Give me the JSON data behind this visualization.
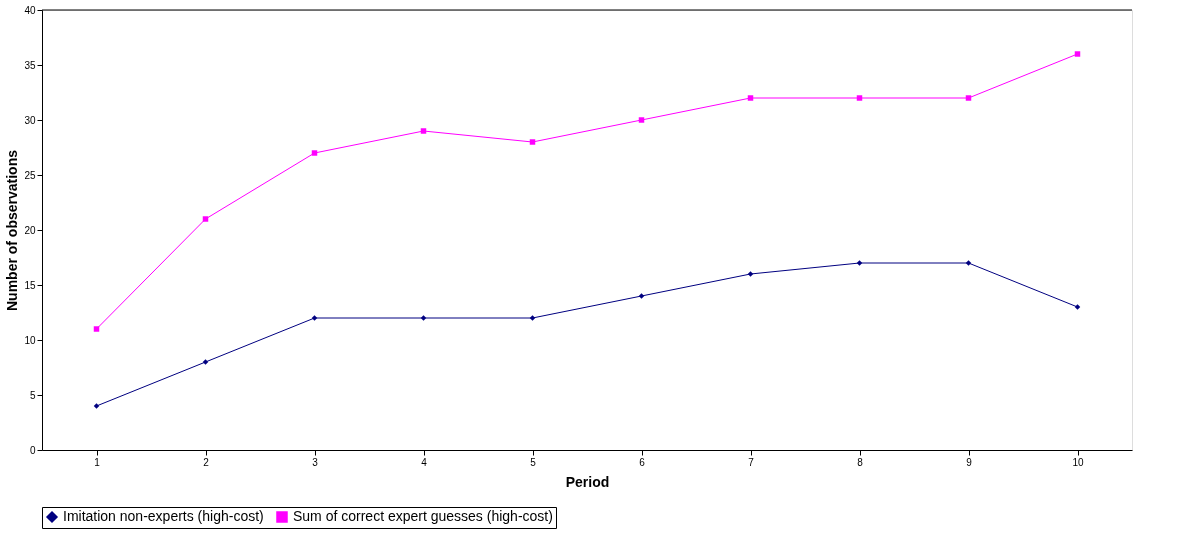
{
  "chart_data": {
    "type": "line",
    "xlabel": "Period",
    "ylabel": "Number of observations",
    "categories": [
      "1",
      "2",
      "3",
      "4",
      "5",
      "6",
      "7",
      "8",
      "9",
      "10"
    ],
    "series": [
      {
        "name": "Imitation non-experts (high-cost)",
        "color": "#000080",
        "marker": "diamond",
        "values": [
          4,
          8,
          12,
          12,
          12,
          14,
          16,
          17,
          17,
          13
        ]
      },
      {
        "name": "Sum of correct expert guesses (high-cost)",
        "color": "#ff00ff",
        "marker": "square",
        "values": [
          11,
          21,
          27,
          29,
          28,
          30,
          32,
          32,
          32,
          36
        ]
      }
    ],
    "ylim": [
      0,
      40
    ],
    "yticks": [
      0,
      5,
      10,
      15,
      20,
      25,
      30,
      35,
      40
    ],
    "grid": false,
    "legend": "bottom",
    "line_style": "solid"
  }
}
